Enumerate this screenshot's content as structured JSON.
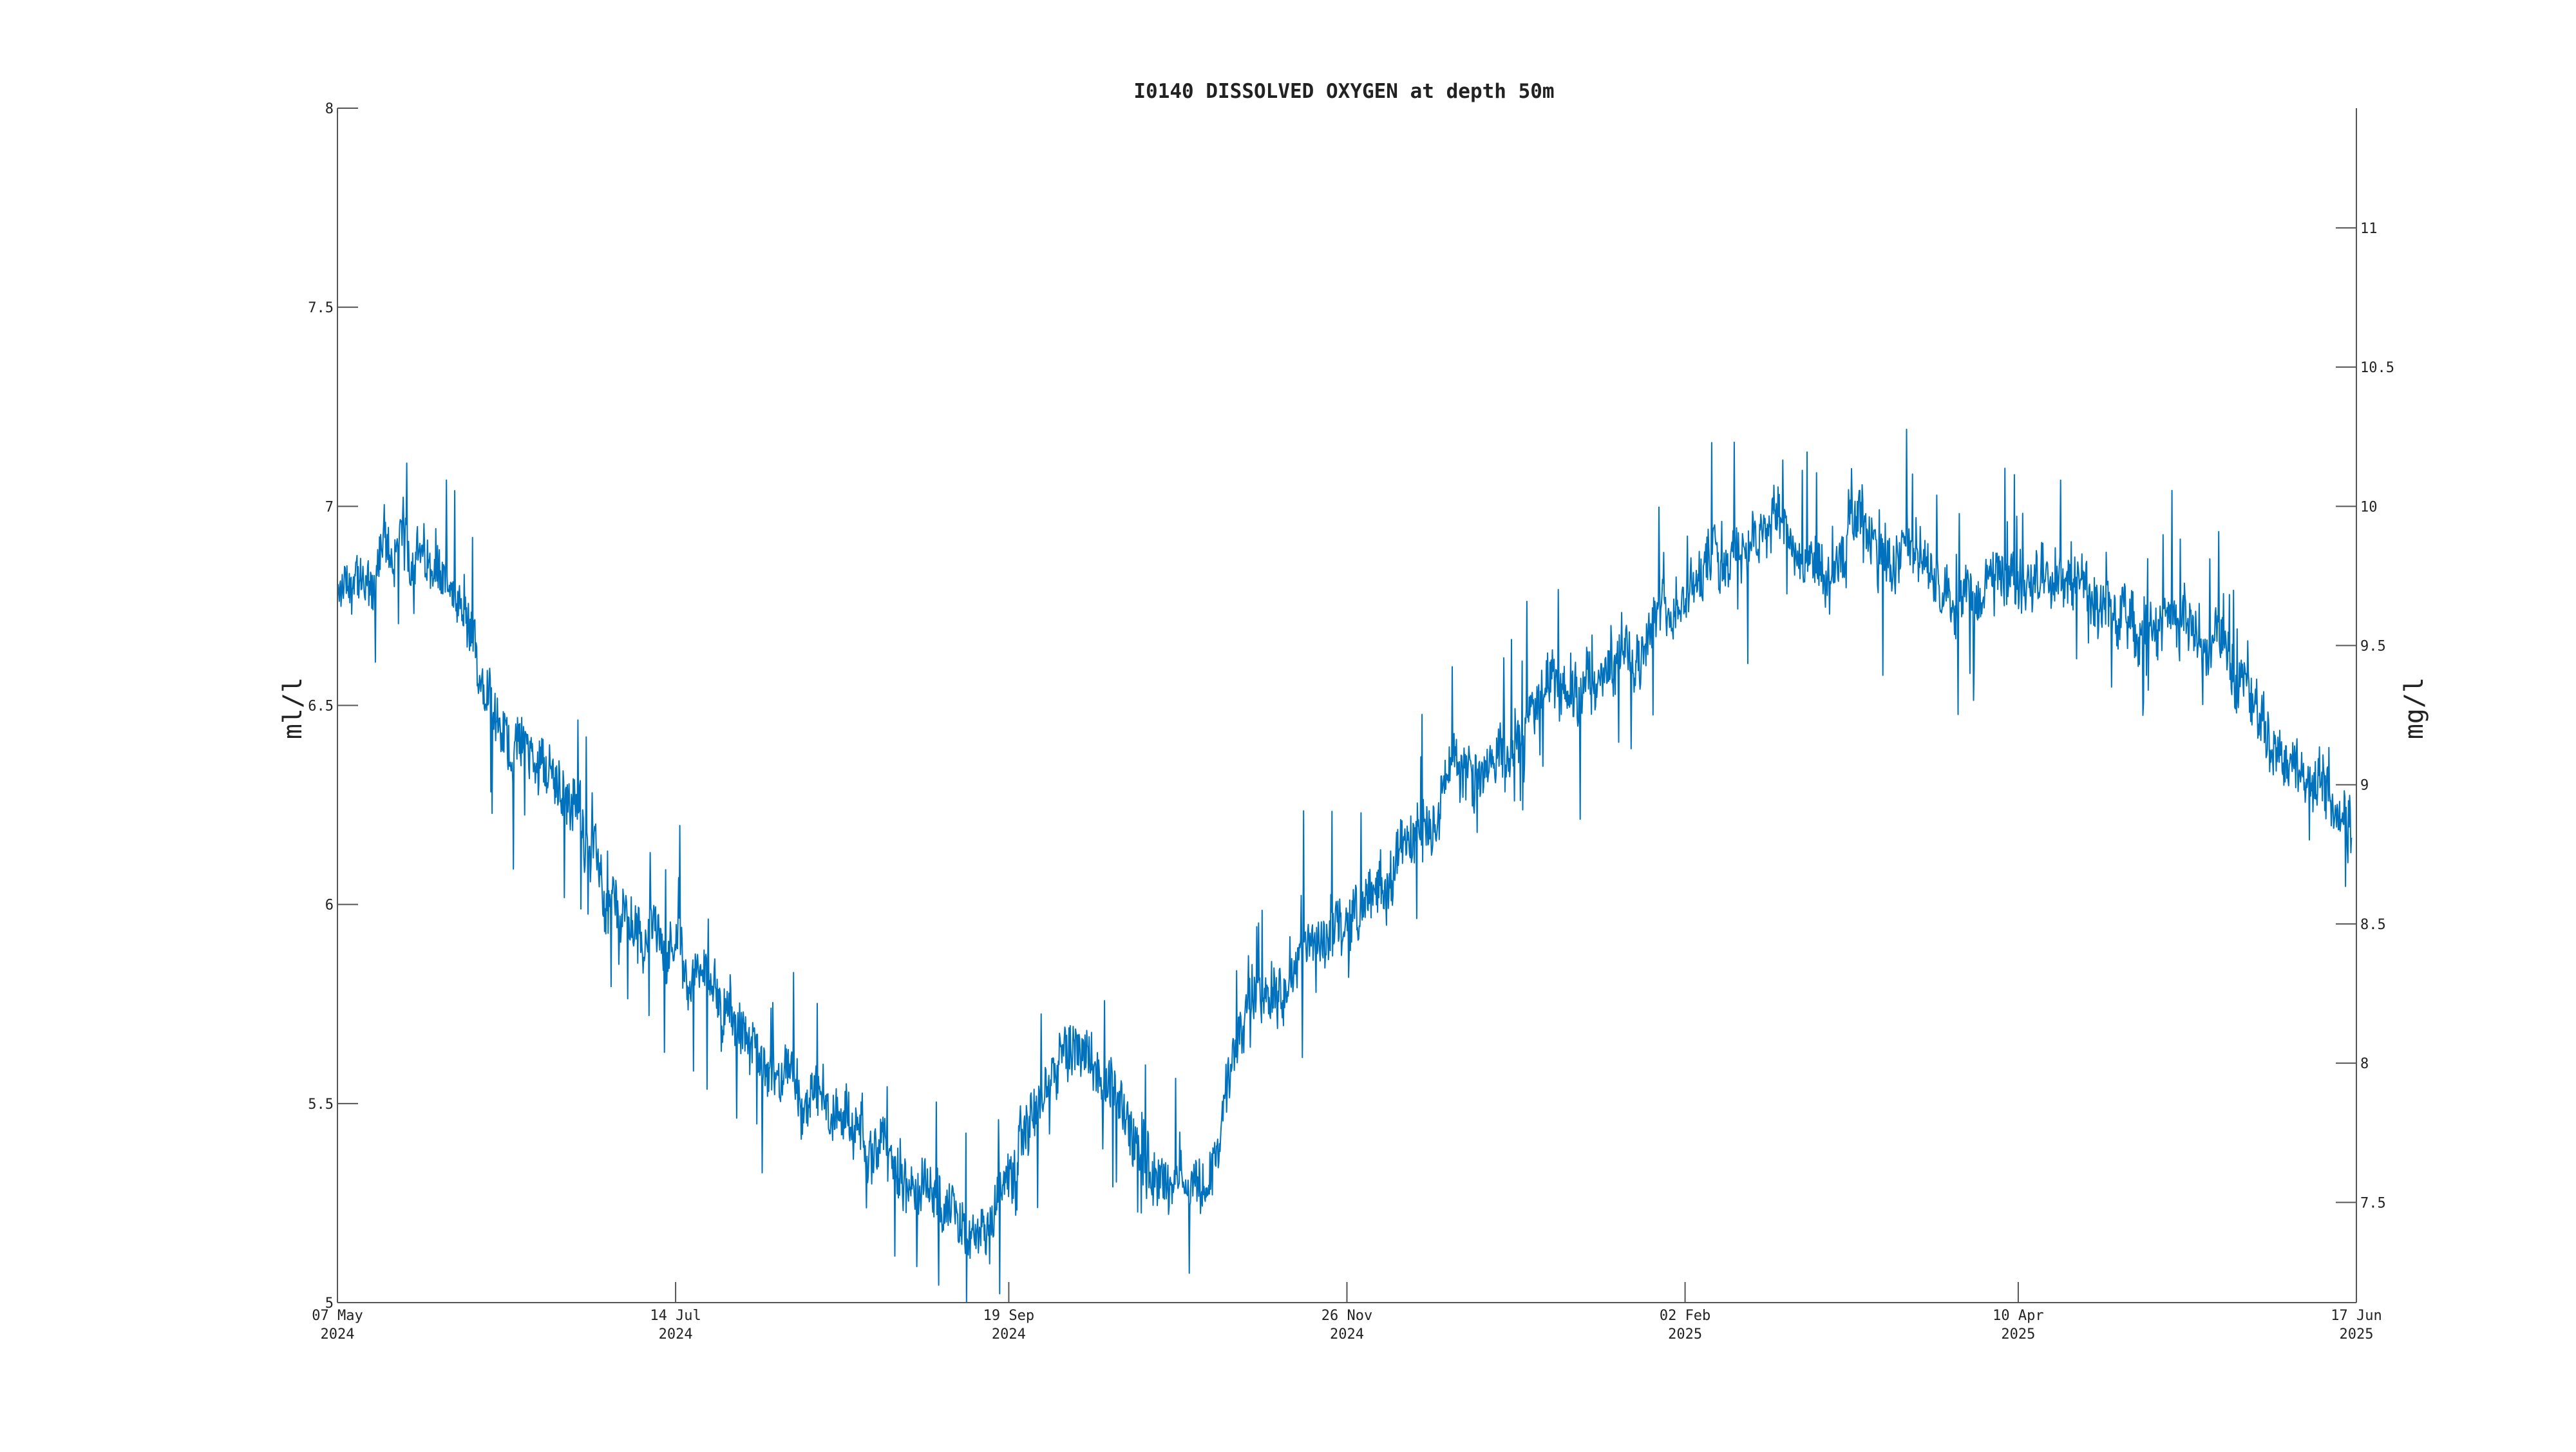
{
  "chart_data": {
    "type": "line",
    "title": "I0140 DISSOLVED OXYGEN at depth 50m",
    "ylabel": "ml/l",
    "ylabel_right": "mg/l",
    "xlabel": "",
    "xlim": [
      "2024-05-07",
      "2025-06-17"
    ],
    "ylim": [
      5,
      8
    ],
    "ylim_right": [
      7.14,
      11.43
    ],
    "grid": false,
    "x_ticks": [
      {
        "date": "2024-05-07",
        "day": "07 May",
        "year": "2024"
      },
      {
        "date": "2024-07-14",
        "day": "14 Jul",
        "year": "2024"
      },
      {
        "date": "2024-09-19",
        "day": "19 Sep",
        "year": "2024"
      },
      {
        "date": "2024-11-26",
        "day": "26 Nov",
        "year": "2024"
      },
      {
        "date": "2025-02-02",
        "day": "02 Feb",
        "year": "2025"
      },
      {
        "date": "2025-04-10",
        "day": "10 Apr",
        "year": "2025"
      },
      {
        "date": "2025-06-17",
        "day": "17 Jun",
        "year": "2025"
      }
    ],
    "y_ticks": [
      "5",
      "5.5",
      "6",
      "6.5",
      "7",
      "7.5",
      "8"
    ],
    "y_ticks_right": [
      "7.5",
      "8",
      "8.5",
      "9",
      "9.5",
      "10",
      "10.5",
      "11"
    ],
    "series": [
      {
        "color": "#0072BD",
        "x": [
          "2024-05-07",
          "2024-05-12",
          "2024-05-17",
          "2024-05-22",
          "2024-05-27",
          "2024-06-01",
          "2024-06-06",
          "2024-06-11",
          "2024-06-16",
          "2024-06-21",
          "2024-06-26",
          "2024-07-01",
          "2024-07-06",
          "2024-07-11",
          "2024-07-16",
          "2024-07-21",
          "2024-07-26",
          "2024-07-31",
          "2024-08-05",
          "2024-08-10",
          "2024-08-15",
          "2024-08-20",
          "2024-08-25",
          "2024-08-30",
          "2024-09-04",
          "2024-09-09",
          "2024-09-14",
          "2024-09-19",
          "2024-09-24",
          "2024-09-29",
          "2024-10-04",
          "2024-10-09",
          "2024-10-14",
          "2024-10-19",
          "2024-10-24",
          "2024-10-29",
          "2024-11-03",
          "2024-11-08",
          "2024-11-13",
          "2024-11-18",
          "2024-11-23",
          "2024-11-28",
          "2024-12-03",
          "2024-12-08",
          "2024-12-13",
          "2024-12-18",
          "2024-12-23",
          "2024-12-28",
          "2025-01-02",
          "2025-01-07",
          "2025-01-12",
          "2025-01-17",
          "2025-01-22",
          "2025-01-27",
          "2025-02-01",
          "2025-02-06",
          "2025-02-11",
          "2025-02-16",
          "2025-02-21",
          "2025-02-26",
          "2025-03-03",
          "2025-03-08",
          "2025-03-13",
          "2025-03-18",
          "2025-03-23",
          "2025-03-28",
          "2025-04-02",
          "2025-04-07",
          "2025-04-12",
          "2025-04-17",
          "2025-04-22",
          "2025-04-27",
          "2025-05-02",
          "2025-05-07",
          "2025-05-12",
          "2025-05-17",
          "2025-05-22",
          "2025-05-27",
          "2025-06-01",
          "2025-06-06",
          "2025-06-11",
          "2025-06-16"
        ],
        "y": [
          6.75,
          6.8,
          6.85,
          6.9,
          6.85,
          6.7,
          6.55,
          6.42,
          6.35,
          6.3,
          6.2,
          6.0,
          5.95,
          5.9,
          5.85,
          5.78,
          5.7,
          5.62,
          5.55,
          5.5,
          5.45,
          5.4,
          5.35,
          5.3,
          5.25,
          5.22,
          5.2,
          5.3,
          5.45,
          5.6,
          5.65,
          5.55,
          5.4,
          5.3,
          5.35,
          5.3,
          5.6,
          5.75,
          5.82,
          5.88,
          5.95,
          5.98,
          6.05,
          6.15,
          6.28,
          6.35,
          6.3,
          6.4,
          6.5,
          6.5,
          6.55,
          6.58,
          6.65,
          6.75,
          6.8,
          6.85,
          6.88,
          6.95,
          7.0,
          6.85,
          6.82,
          6.95,
          6.9,
          6.88,
          6.82,
          6.75,
          6.8,
          6.85,
          6.82,
          6.85,
          6.82,
          6.75,
          6.72,
          6.7,
          6.72,
          6.68,
          6.65,
          6.5,
          6.4,
          6.35,
          6.3,
          6.25
        ]
      }
    ]
  }
}
